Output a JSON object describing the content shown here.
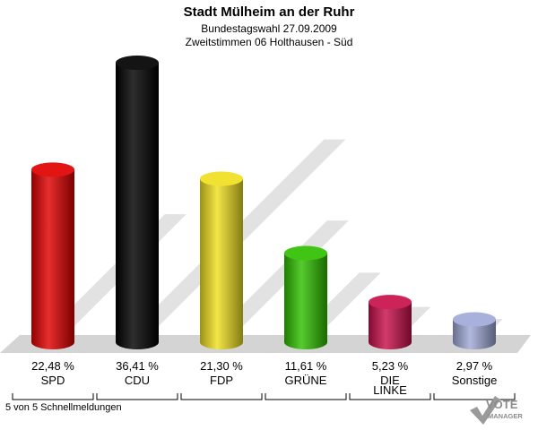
{
  "header": {
    "title": "Stadt Mülheim an der Ruhr",
    "subtitle1": "Bundestagswahl 27.09.2009",
    "subtitle2": "Zweitstimmen 06 Holthausen - Süd"
  },
  "chart_data": {
    "type": "bar",
    "categories": [
      "SPD",
      "CDU",
      "FDP",
      "GRÜNE",
      "DIE LINKE",
      "Sonstige"
    ],
    "values": [
      22.48,
      36.41,
      21.3,
      11.61,
      5.23,
      2.97
    ],
    "value_labels": [
      "22,48 %",
      "36,41 %",
      "21,30 %",
      "11,61 %",
      "5,23 %",
      "2,97 %"
    ],
    "category_labels": [
      [
        "SPD"
      ],
      [
        "CDU"
      ],
      [
        "FDP"
      ],
      [
        "GRÜNE"
      ],
      [
        "DIE",
        "LINKE"
      ],
      [
        "Sonstige"
      ]
    ],
    "colors": [
      "#e00000",
      "#000000",
      "#f0e020",
      "#30c000",
      "#c8104a",
      "#a0aad8"
    ],
    "ylim": [
      0,
      36.41
    ]
  },
  "footer": {
    "status": "5 von 5 Schnellmeldungen"
  },
  "logo": {
    "line1": "VOTE",
    "line2": "MANAGER"
  }
}
